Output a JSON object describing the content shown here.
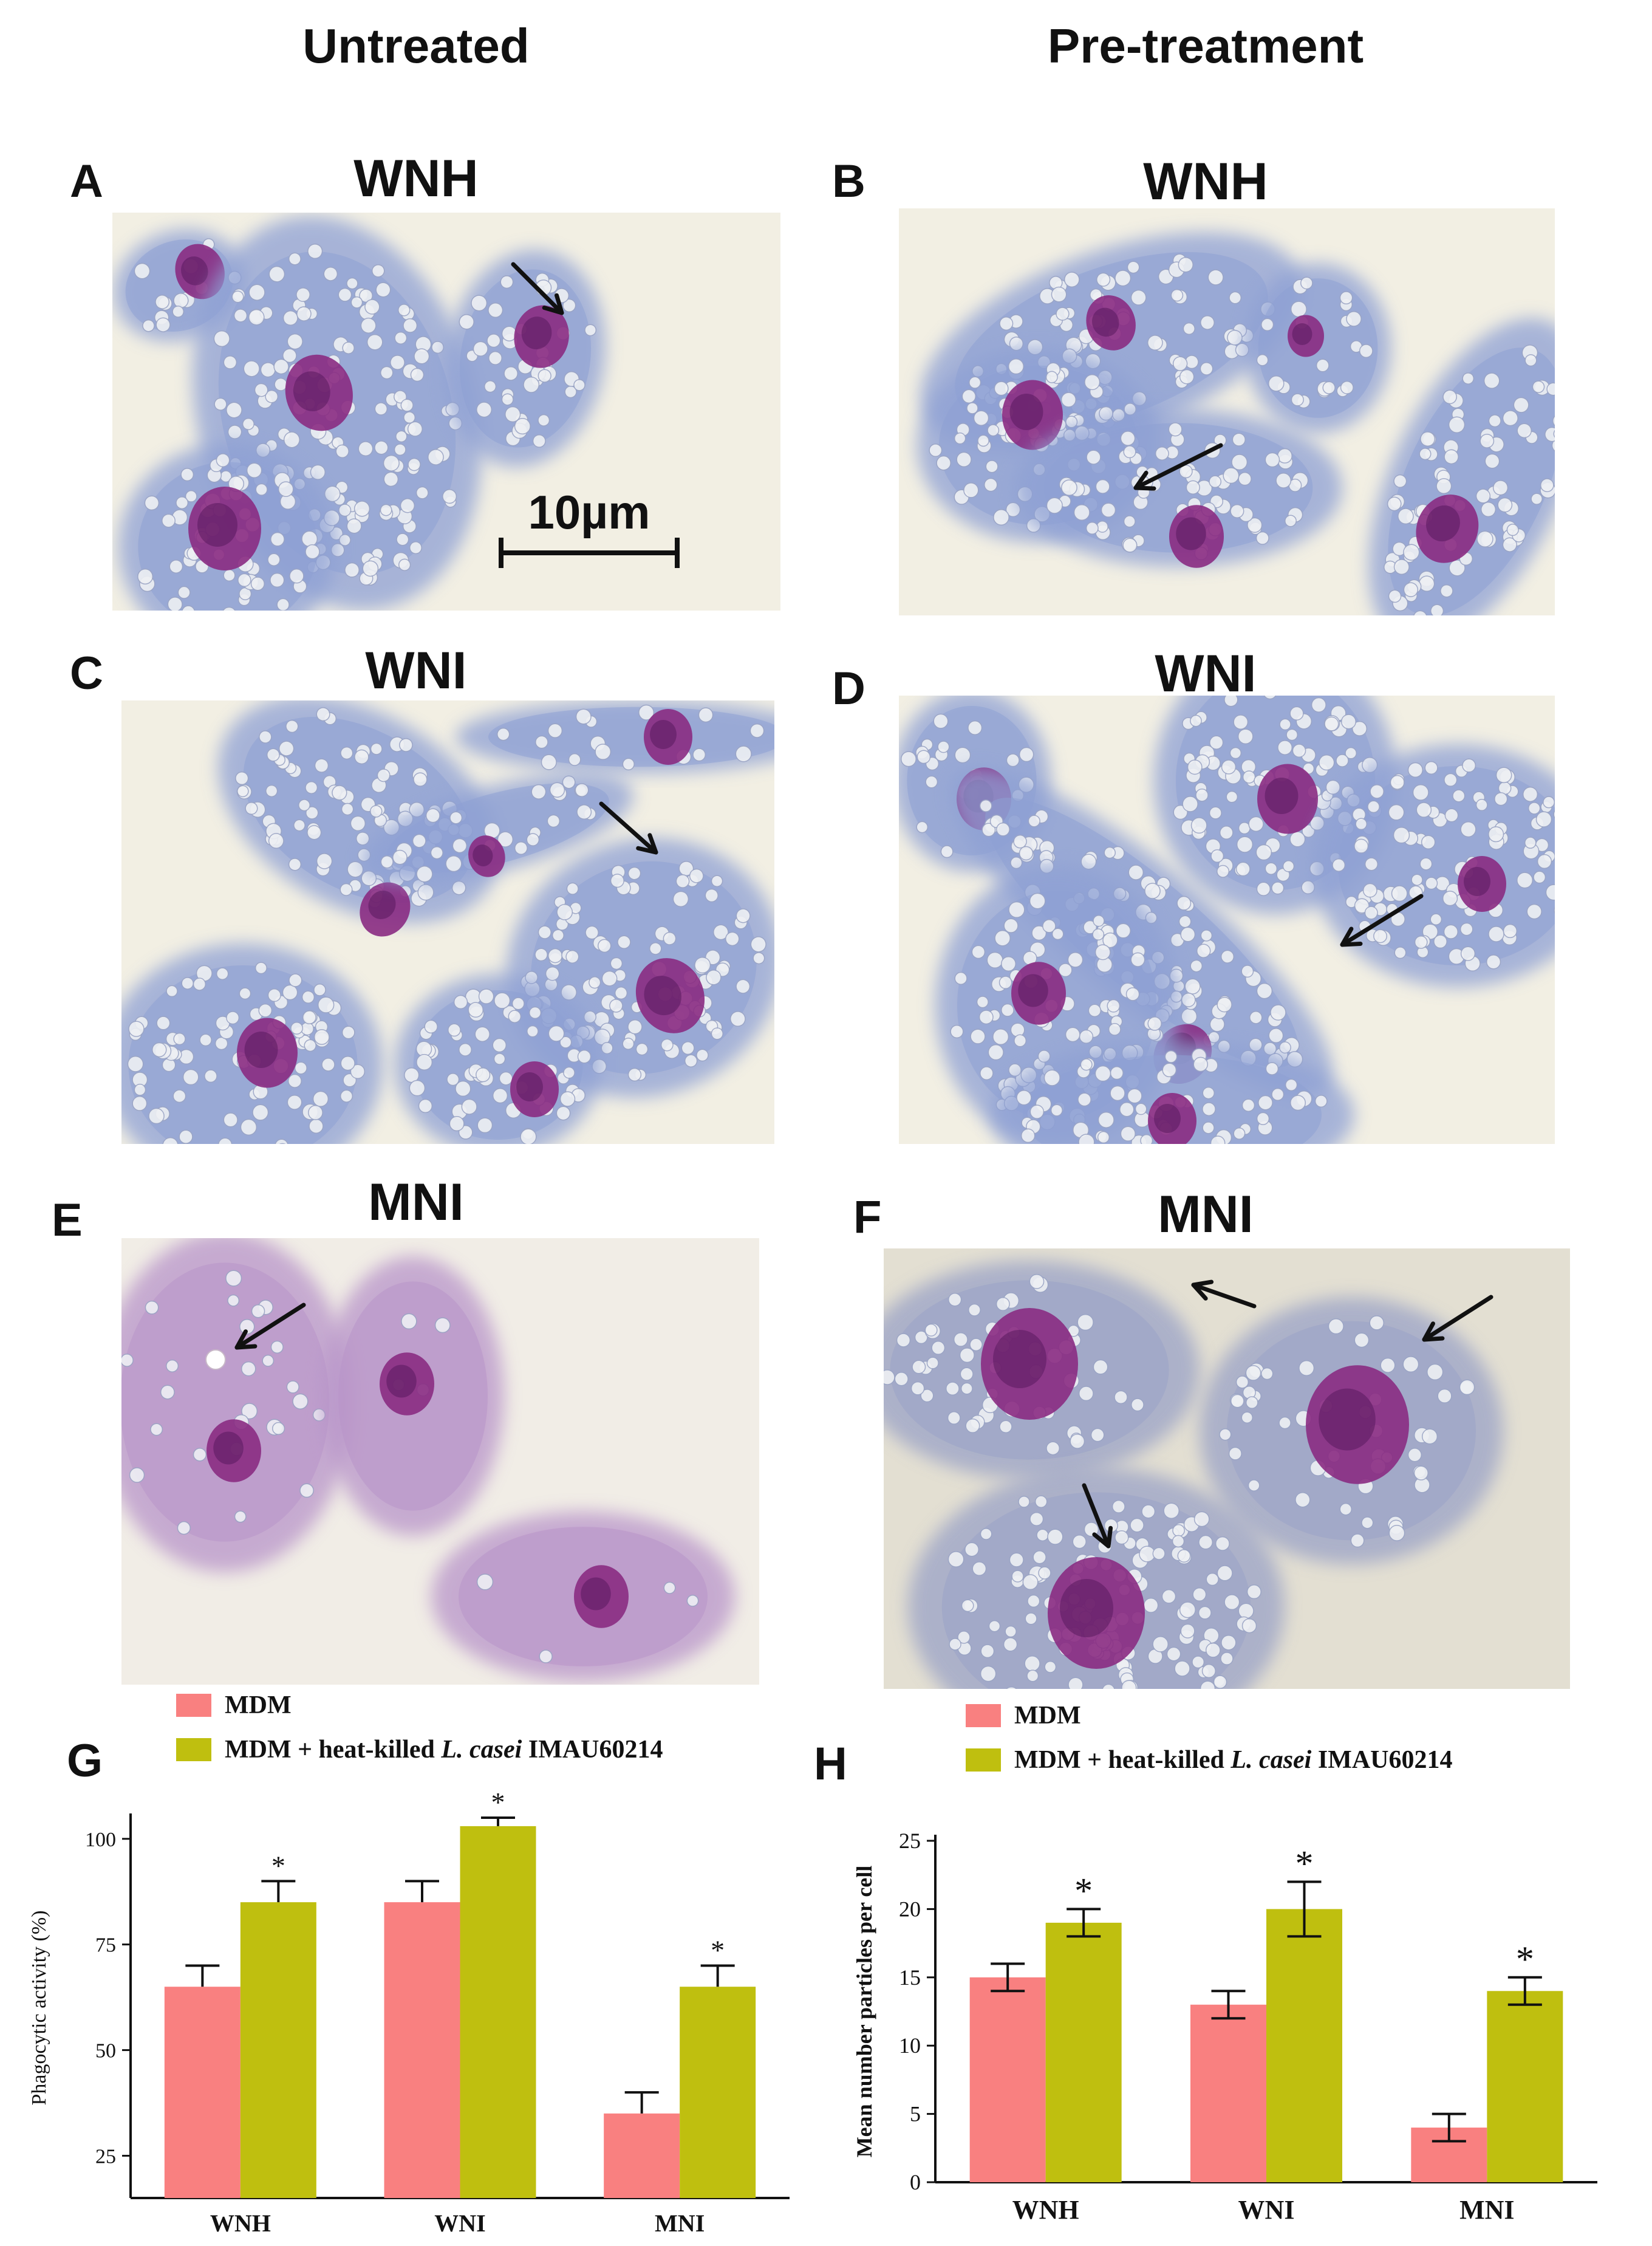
{
  "columns": {
    "left": "Untreated",
    "right": "Pre-treatment"
  },
  "panels": [
    {
      "letter": "A",
      "title": "WNH"
    },
    {
      "letter": "B",
      "title": "WNH"
    },
    {
      "letter": "C",
      "title": "WNI"
    },
    {
      "letter": "D",
      "title": "WNI"
    },
    {
      "letter": "E",
      "title": "MNI"
    },
    {
      "letter": "F",
      "title": "MNI"
    }
  ],
  "scale_bar": {
    "label": "10µm"
  },
  "colors": {
    "mdm": "#f98080",
    "treated": "#bfbf0f",
    "micro_bg": "#f2efe3",
    "cytoplasm": "#8ea0d4",
    "nucleus": "#8a2b82"
  },
  "chart_data": [
    {
      "panel": "G",
      "type": "bar",
      "categories": [
        "WNH",
        "WNI",
        "MNI"
      ],
      "series": [
        {
          "name": "MDM",
          "values": [
            65,
            85,
            35
          ],
          "errors": [
            5,
            5,
            5
          ]
        },
        {
          "name": "MDM + heat-killed L. casei IMAU60214",
          "values": [
            85,
            103,
            65
          ],
          "errors": [
            5,
            2,
            5
          ]
        }
      ],
      "ylabel": "Phagocytic activity (%)",
      "yticks": [
        25,
        50,
        75,
        100
      ],
      "ylim": [
        15,
        105
      ],
      "significance": [
        "*",
        "*",
        "*"
      ],
      "legend": {
        "mdm": "MDM",
        "treated_prefix": "MDM + heat-killed ",
        "treated_italic": "L. casei",
        "treated_suffix": " IMAU60214"
      }
    },
    {
      "panel": "H",
      "type": "bar",
      "categories": [
        "WNH",
        "WNI",
        "MNI"
      ],
      "series": [
        {
          "name": "MDM",
          "values": [
            15,
            13,
            4
          ],
          "errors": [
            1,
            1,
            1
          ]
        },
        {
          "name": "MDM + heat-killed L. casei IMAU60214",
          "values": [
            19,
            20,
            14
          ],
          "errors": [
            1,
            2,
            1
          ]
        }
      ],
      "ylabel": "Mean number particles per cell",
      "yticks": [
        0,
        5,
        10,
        15,
        20,
        25
      ],
      "ylim": [
        0,
        25
      ],
      "significance": [
        "*",
        "*",
        "*"
      ],
      "legend": {
        "mdm": "MDM",
        "treated_prefix": "MDM + heat-killed ",
        "treated_italic": "L. casei",
        "treated_suffix": " IMAU60214"
      }
    }
  ]
}
